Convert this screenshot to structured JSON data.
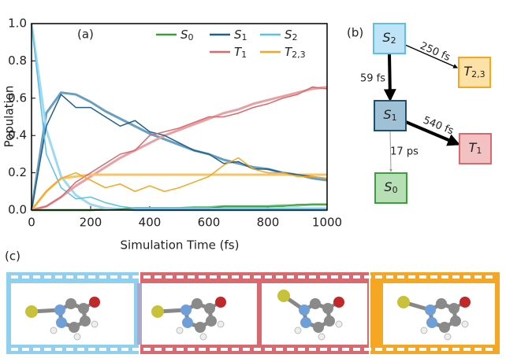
{
  "chart_data": {
    "type": "line",
    "panel_label": "(a)",
    "xlabel": "Simulation Time (fs)",
    "ylabel": "Population",
    "x": [
      0,
      50,
      100,
      150,
      200,
      250,
      300,
      350,
      400,
      450,
      500,
      550,
      600,
      650,
      700,
      750,
      800,
      850,
      900,
      950,
      1000
    ],
    "xlim": [
      0,
      1000
    ],
    "xticks": [
      0,
      200,
      400,
      600,
      800,
      1000
    ],
    "ylim": [
      0,
      1
    ],
    "yticks": [
      {
        "value": 0,
        "label": "0.0"
      },
      {
        "value": 0.2,
        "label": "0.2"
      },
      {
        "value": 0.4,
        "label": "0.4"
      },
      {
        "value": 0.6,
        "label": "0.6"
      },
      {
        "value": 0.8,
        "label": "0.8"
      },
      {
        "value": 1,
        "label": "1.0"
      }
    ],
    "series": [
      {
        "name": "S0",
        "color": "#3a9e3a",
        "values": [
          0,
          0,
          0,
          0,
          0,
          0,
          0.005,
          0.01,
          0.01,
          0.01,
          0.01,
          0.01,
          0.01,
          0.02,
          0.02,
          0.02,
          0.02,
          0.02,
          0.03,
          0.03,
          0.03
        ]
      },
      {
        "name": "S1",
        "color": "#1f5f8b",
        "values": [
          0,
          0.45,
          0.62,
          0.55,
          0.55,
          0.5,
          0.45,
          0.48,
          0.42,
          0.4,
          0.36,
          0.32,
          0.3,
          0.25,
          0.26,
          0.22,
          0.22,
          0.2,
          0.19,
          0.18,
          0.17
        ]
      },
      {
        "name": "S2",
        "color": "#5bc0eb",
        "values": [
          1,
          0.3,
          0.12,
          0.06,
          0.07,
          0.04,
          0.02,
          0.01,
          0.01,
          0.01,
          0.01,
          0.01,
          0.01,
          0.01,
          0.01,
          0.01,
          0.01,
          0.01,
          0.01,
          0.01,
          0.01
        ]
      },
      {
        "name": "T1",
        "color": "#d9696e",
        "values": [
          0,
          0.02,
          0.07,
          0.15,
          0.2,
          0.25,
          0.3,
          0.32,
          0.4,
          0.42,
          0.44,
          0.47,
          0.5,
          0.5,
          0.52,
          0.55,
          0.57,
          0.6,
          0.62,
          0.66,
          0.65
        ]
      },
      {
        "name": "T2,3",
        "color": "#f5a623",
        "values": [
          0,
          0.1,
          0.17,
          0.2,
          0.16,
          0.12,
          0.14,
          0.1,
          0.13,
          0.1,
          0.12,
          0.15,
          0.18,
          0.24,
          0.28,
          0.22,
          0.2,
          0.2,
          0.18,
          0.18,
          0.17
        ]
      }
    ],
    "fits": [
      {
        "color": "#7fc47f",
        "values": [
          0,
          0,
          0,
          0,
          0,
          0.005,
          0.005,
          0.01,
          0.01,
          0.01,
          0.01,
          0.015,
          0.015,
          0.02,
          0.02,
          0.02,
          0.02,
          0.025,
          0.025,
          0.03,
          0.03
        ]
      },
      {
        "color": "#6a9fc2",
        "values": [
          0,
          0.52,
          0.63,
          0.62,
          0.58,
          0.53,
          0.49,
          0.45,
          0.41,
          0.38,
          0.35,
          0.32,
          0.3,
          0.27,
          0.25,
          0.23,
          0.22,
          0.2,
          0.19,
          0.17,
          0.16
        ]
      },
      {
        "color": "#9dd9f3",
        "values": [
          1,
          0.43,
          0.18,
          0.08,
          0.03,
          0.01,
          0.006,
          0,
          0,
          0,
          0,
          0,
          0,
          0,
          0,
          0,
          0,
          0,
          0,
          0,
          0
        ]
      },
      {
        "color": "#e8a0a3",
        "values": [
          0,
          0.02,
          0.07,
          0.13,
          0.18,
          0.23,
          0.28,
          0.32,
          0.36,
          0.4,
          0.43,
          0.46,
          0.49,
          0.52,
          0.54,
          0.57,
          0.59,
          0.61,
          0.63,
          0.65,
          0.66
        ]
      },
      {
        "color": "#f8c46a",
        "values": [
          0,
          0.1,
          0.17,
          0.18,
          0.19,
          0.19,
          0.19,
          0.19,
          0.19,
          0.19,
          0.19,
          0.19,
          0.19,
          0.19,
          0.19,
          0.19,
          0.19,
          0.19,
          0.19,
          0.19,
          0.19
        ]
      }
    ]
  },
  "diagram": {
    "panel_label": "(b)",
    "nodes": [
      {
        "label": "S2",
        "fill": "#bfe3f7",
        "stroke": "#5bc0eb"
      },
      {
        "label": "T2,3",
        "fill": "#fde1a6",
        "stroke": "#f5a623"
      },
      {
        "label": "S1",
        "fill": "#9fc1d6",
        "stroke": "#1f4f70"
      },
      {
        "label": "T1",
        "fill": "#f3c1c2",
        "stroke": "#d9696e"
      },
      {
        "label": "S0",
        "fill": "#b6dfb6",
        "stroke": "#3a9e3a"
      }
    ],
    "edges": [
      {
        "label": "250 fs"
      },
      {
        "label": "59 fs"
      },
      {
        "label": "540 fs"
      },
      {
        "label": "17 ps"
      }
    ]
  },
  "panel_c": {
    "label": "(c)"
  }
}
